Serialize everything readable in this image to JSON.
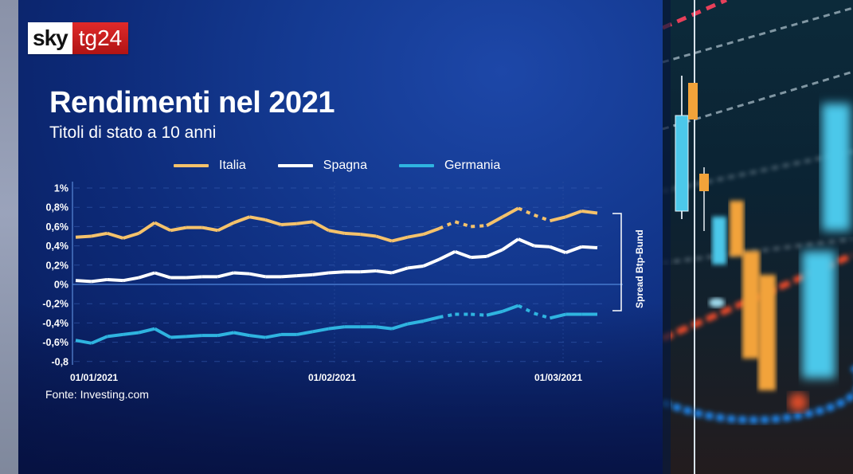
{
  "branding": {
    "logo_left": "sky",
    "logo_right": "tg24"
  },
  "header": {
    "title": "Rendimenti nel 2021",
    "subtitle": "Titoli di stato a 10 anni"
  },
  "legend": [
    {
      "label": "Italia",
      "color": "#f5c26b"
    },
    {
      "label": "Spagna",
      "color": "#ffffff"
    },
    {
      "label": "Germania",
      "color": "#2fb4e0"
    }
  ],
  "source": "Fonte: Investing.com",
  "annotation": "Spread Btp-Bund",
  "colors": {
    "panel_bg": "#0d2a78",
    "italia": "#f5c26b",
    "spagna": "#ffffff",
    "germania": "#2fb4e0",
    "logo_red": "#c81e1e"
  },
  "chart_data": {
    "type": "line",
    "title": "Rendimenti nel 2021",
    "subtitle": "Titoli di stato a 10 anni",
    "xlabel": "",
    "ylabel": "",
    "y_tick_labels": [
      "1%",
      "0,8%",
      "0,6%",
      "0,4%",
      "0,2%",
      "0%",
      "-0,2%",
      "-0,4%",
      "-0,6%",
      "-0,8"
    ],
    "y_ticks": [
      1.0,
      0.8,
      0.6,
      0.4,
      0.2,
      0.0,
      -0.2,
      -0.4,
      -0.6,
      -0.8
    ],
    "ylim": [
      -0.8,
      1.0
    ],
    "x_tick_labels": [
      "01/01/2021",
      "01/02/2021",
      "01/03/2021"
    ],
    "x_range": [
      "2021-01-01",
      "2021-03-09"
    ],
    "grid": "horizontal dashed",
    "legend_position": "top",
    "annotations": [
      "Spread Btp-Bund (bracket between Italia and Germania at latest date)",
      "Dotted segments indicate gaps in data"
    ],
    "x": [
      "01/01",
      "04/01",
      "06/01",
      "08/01",
      "10/01",
      "12/01",
      "14/01",
      "16/01",
      "18/01",
      "20/01",
      "22/01",
      "24/01",
      "26/01",
      "28/01",
      "30/01",
      "01/02",
      "03/02",
      "05/02",
      "07/02",
      "09/02",
      "11/02",
      "13/02",
      "15/02",
      "17/02",
      "19/02",
      "21/02",
      "23/02",
      "25/02",
      "27/02",
      "01/03",
      "03/03",
      "05/03",
      "07/03",
      "09/03"
    ],
    "series": [
      {
        "name": "Italia",
        "color": "#f5c26b",
        "values": [
          0.49,
          0.5,
          0.53,
          0.48,
          0.53,
          0.64,
          0.56,
          0.59,
          0.59,
          0.56,
          0.64,
          0.7,
          0.67,
          0.62,
          0.63,
          0.65,
          0.56,
          0.53,
          0.52,
          0.5,
          0.45,
          0.49,
          0.52,
          0.58,
          0.65,
          0.6,
          0.61,
          0.7,
          0.79,
          0.72,
          0.66,
          0.7,
          0.76,
          0.74
        ]
      },
      {
        "name": "Spagna",
        "color": "#ffffff",
        "values": [
          0.04,
          0.03,
          0.05,
          0.04,
          0.07,
          0.12,
          0.07,
          0.07,
          0.08,
          0.08,
          0.12,
          0.11,
          0.08,
          0.08,
          0.09,
          0.1,
          0.12,
          0.13,
          0.13,
          0.14,
          0.12,
          0.17,
          0.19,
          0.26,
          0.34,
          0.28,
          0.29,
          0.36,
          0.47,
          0.4,
          0.39,
          0.33,
          0.39,
          0.38
        ]
      },
      {
        "name": "Germania",
        "color": "#2fb4e0",
        "values": [
          -0.58,
          -0.61,
          -0.54,
          -0.52,
          -0.5,
          -0.46,
          -0.55,
          -0.54,
          -0.53,
          -0.53,
          -0.5,
          -0.53,
          -0.55,
          -0.52,
          -0.52,
          -0.49,
          -0.46,
          -0.44,
          -0.44,
          -0.44,
          -0.46,
          -0.41,
          -0.38,
          -0.34,
          -0.31,
          -0.31,
          -0.32,
          -0.28,
          -0.22,
          -0.3,
          -0.35,
          -0.31,
          -0.31,
          -0.31
        ]
      }
    ]
  }
}
